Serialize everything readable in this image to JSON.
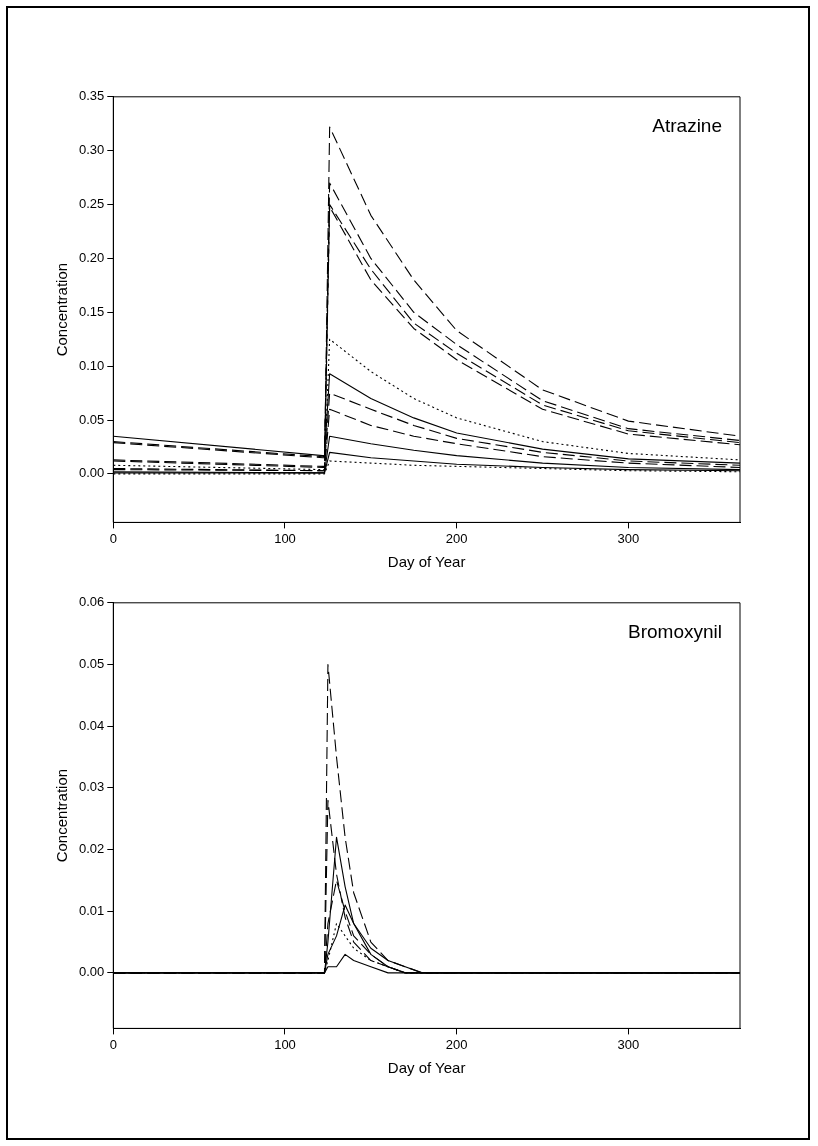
{
  "chart_data": [
    {
      "type": "line",
      "title": "Atrazine",
      "xlabel": "Day of Year",
      "ylabel": "Concentration",
      "x": [
        0,
        122,
        123,
        126,
        150,
        175,
        200,
        250,
        300,
        365
      ],
      "xlim": [
        0,
        365
      ],
      "xticks": [
        0,
        100,
        200,
        300
      ],
      "ylim": [
        -0.045,
        0.35
      ],
      "yticks": [
        {
          "value": 0,
          "label": "0.00"
        },
        {
          "value": 0.05,
          "label": "0.05"
        },
        {
          "value": 0.1,
          "label": "0.10"
        },
        {
          "value": 0.15,
          "label": "0.15"
        },
        {
          "value": 0.2,
          "label": "0.20"
        },
        {
          "value": 0.25,
          "label": "0.25"
        },
        {
          "value": 0.3,
          "label": "0.30"
        },
        {
          "value": 0.35,
          "label": "0.35"
        }
      ],
      "grid": false,
      "legend": false,
      "marker": "none",
      "series": [
        {
          "color": "#000000",
          "line_style": "dashed",
          "values": [
            0.004,
            0.003,
            0.003,
            0.322,
            0.24,
            0.18,
            0.133,
            0.078,
            0.049,
            0.035
          ]
        },
        {
          "color": "#000000",
          "line_style": "dashed",
          "values": [
            0.03,
            0.016,
            0.016,
            0.27,
            0.2,
            0.15,
            0.12,
            0.068,
            0.042,
            0.031
          ]
        },
        {
          "color": "#000000",
          "line_style": "dashed",
          "values": [
            0.029,
            0.015,
            0.015,
            0.25,
            0.19,
            0.14,
            0.112,
            0.064,
            0.04,
            0.029
          ]
        },
        {
          "color": "#000000",
          "line_style": "dashed",
          "values": [
            0.012,
            0.006,
            0.006,
            0.248,
            0.18,
            0.135,
            0.106,
            0.06,
            0.037,
            0.027
          ]
        },
        {
          "color": "#000000",
          "line_style": "dotted",
          "values": [
            0.008,
            0.004,
            0.004,
            0.125,
            0.095,
            0.07,
            0.052,
            0.03,
            0.019,
            0.013
          ]
        },
        {
          "color": "#000000",
          "line_style": "solid",
          "values": [
            0.035,
            0.017,
            0.017,
            0.093,
            0.07,
            0.052,
            0.038,
            0.023,
            0.014,
            0.01
          ]
        },
        {
          "color": "#000000",
          "line_style": "dashed",
          "values": [
            0.013,
            0.007,
            0.007,
            0.075,
            0.06,
            0.045,
            0.033,
            0.02,
            0.012,
            0.008
          ]
        },
        {
          "color": "#000000",
          "line_style": "dashed",
          "values": [
            0.005,
            0.003,
            0.003,
            0.06,
            0.045,
            0.035,
            0.028,
            0.016,
            0.01,
            0.006
          ]
        },
        {
          "color": "#000000",
          "line_style": "solid",
          "values": [
            0.002,
            0.001,
            0.001,
            0.035,
            0.028,
            0.022,
            0.017,
            0.01,
            0.006,
            0.004
          ]
        },
        {
          "color": "#000000",
          "line_style": "solid",
          "values": [
            0.001,
            0.001,
            0.001,
            0.02,
            0.015,
            0.012,
            0.009,
            0.006,
            0.004,
            0.003
          ]
        },
        {
          "color": "#000000",
          "line_style": "dotted",
          "values": [
            0.0,
            0.0,
            0.0,
            0.012,
            0.01,
            0.008,
            0.007,
            0.005,
            0.003,
            0.002
          ]
        }
      ]
    },
    {
      "type": "line",
      "title": "Bromoxynil",
      "xlabel": "Day of Year",
      "ylabel": "Concentration",
      "x": [
        0,
        122,
        123,
        125,
        130,
        135,
        140,
        150,
        160,
        170,
        180,
        200,
        365
      ],
      "xlim": [
        0,
        365
      ],
      "xticks": [
        0,
        100,
        200,
        300
      ],
      "ylim": [
        -0.009,
        0.06
      ],
      "yticks": [
        {
          "value": 0,
          "label": "0.00"
        },
        {
          "value": 0.01,
          "label": "0.01"
        },
        {
          "value": 0.02,
          "label": "0.02"
        },
        {
          "value": 0.03,
          "label": "0.03"
        },
        {
          "value": 0.04,
          "label": "0.04"
        },
        {
          "value": 0.05,
          "label": "0.05"
        },
        {
          "value": 0.06,
          "label": "0.06"
        }
      ],
      "grid": false,
      "legend": false,
      "marker": "none",
      "series": [
        {
          "color": "#000000",
          "line_style": "dashed",
          "values": [
            0,
            0,
            0,
            0.05,
            0.035,
            0.022,
            0.013,
            0.005,
            0.002,
            0.001,
            0,
            0,
            0
          ]
        },
        {
          "color": "#000000",
          "line_style": "dashed",
          "values": [
            0,
            0,
            0,
            0.028,
            0.016,
            0.009,
            0.005,
            0.002,
            0.001,
            0,
            0,
            0,
            0
          ]
        },
        {
          "color": "#000000",
          "line_style": "solid",
          "values": [
            0,
            0,
            0,
            0.005,
            0.022,
            0.014,
            0.008,
            0.003,
            0.001,
            0,
            0,
            0,
            0
          ]
        },
        {
          "color": "#000000",
          "line_style": "dashed",
          "values": [
            0,
            0,
            0,
            0.008,
            0.015,
            0.01,
            0.006,
            0.003,
            0.001,
            0,
            0,
            0,
            0
          ]
        },
        {
          "color": "#000000",
          "line_style": "solid",
          "values": [
            0,
            0,
            0,
            0.003,
            0.006,
            0.011,
            0.008,
            0.004,
            0.002,
            0.001,
            0,
            0,
            0
          ]
        },
        {
          "color": "#000000",
          "line_style": "dotted",
          "values": [
            0,
            0,
            0,
            0.002,
            0.008,
            0.006,
            0.004,
            0.002,
            0.001,
            0,
            0,
            0,
            0
          ]
        },
        {
          "color": "#000000",
          "line_style": "solid",
          "values": [
            0,
            0,
            0,
            0.001,
            0.001,
            0.003,
            0.002,
            0.001,
            0,
            0,
            0,
            0,
            0
          ]
        }
      ]
    }
  ]
}
